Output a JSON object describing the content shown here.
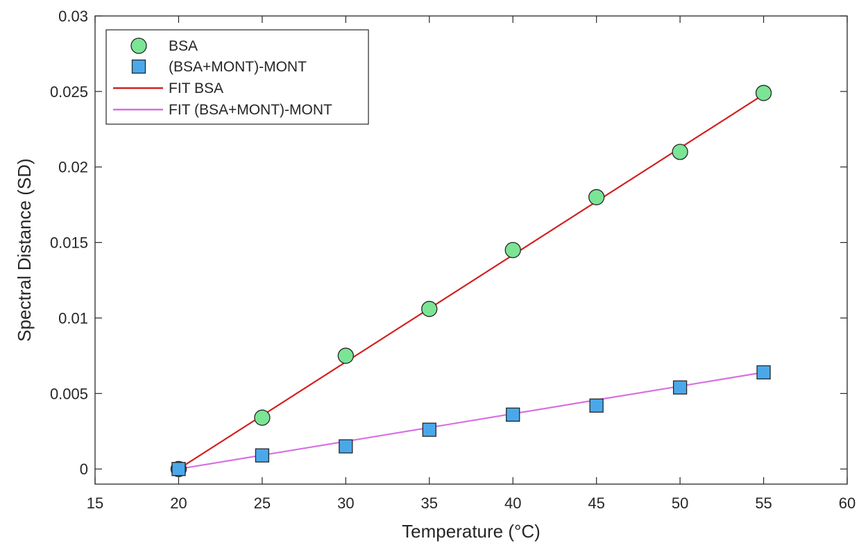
{
  "chart_data": {
    "type": "scatter",
    "title": "",
    "xlabel": "Temperature (°C)",
    "ylabel": "Spectral Distance (SD)",
    "xlim": [
      15,
      60
    ],
    "ylim": [
      -0.001,
      0.03
    ],
    "xticks": [
      15,
      20,
      25,
      30,
      35,
      40,
      45,
      50,
      55,
      60
    ],
    "xtick_labels": [
      "15",
      "20",
      "25",
      "30",
      "35",
      "40",
      "45",
      "50",
      "55",
      "60"
    ],
    "yticks": [
      0,
      0.005,
      0.01,
      0.015,
      0.02,
      0.025,
      0.03
    ],
    "ytick_labels": [
      "0",
      "0.005",
      "0.01",
      "0.015",
      "0.02",
      "0.025",
      "0.03"
    ],
    "grid": false,
    "legend_position": "top-left",
    "series": [
      {
        "name": "BSA",
        "kind": "marker",
        "marker": "circle",
        "color": "#7be495",
        "x": [
          20,
          25,
          30,
          35,
          40,
          45,
          50,
          55
        ],
        "y": [
          0,
          0.0034,
          0.0075,
          0.0106,
          0.0145,
          0.018,
          0.021,
          0.0249
        ]
      },
      {
        "name": "(BSA+MONT)-MONT",
        "kind": "marker",
        "marker": "square",
        "color": "#4aa8ea",
        "x": [
          20,
          25,
          30,
          35,
          40,
          45,
          50,
          55
        ],
        "y": [
          0,
          0.0009,
          0.0015,
          0.0026,
          0.0036,
          0.0042,
          0.0054,
          0.0064
        ]
      },
      {
        "name": "FIT BSA",
        "kind": "line",
        "color": "#d42020",
        "x": [
          20,
          55
        ],
        "y": [
          0,
          0.0248
        ]
      },
      {
        "name": "FIT (BSA+MONT)-MONT",
        "kind": "line",
        "color": "#d86fe0",
        "x": [
          20,
          55
        ],
        "y": [
          0,
          0.0064
        ]
      }
    ]
  }
}
